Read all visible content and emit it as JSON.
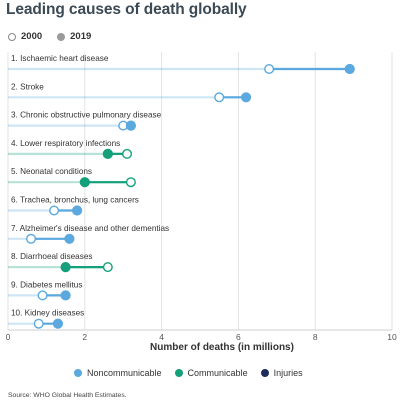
{
  "title": "Leading causes of death globally",
  "year_legend": [
    {
      "label": "2000",
      "style": "open"
    },
    {
      "label": "2019",
      "style": "filled"
    }
  ],
  "category_legend": [
    {
      "label": "Noncommunicable",
      "color": "#5ba9de"
    },
    {
      "label": "Communicable",
      "color": "#13a07a"
    },
    {
      "label": "Injuries",
      "color": "#1d2c5b"
    }
  ],
  "source": "Source: WHO Global Health Estimates.",
  "chart_data": {
    "type": "dumbbell",
    "title": "Leading causes of death globally",
    "xlabel": "Number of deaths (in millions)",
    "ylabel": "",
    "xlim": [
      0,
      10
    ],
    "xticks": [
      0,
      2,
      4,
      6,
      8,
      10
    ],
    "series": [
      {
        "name": "2000"
      },
      {
        "name": "2019"
      }
    ],
    "grid": "vertical",
    "legend_position": "top-left",
    "categories": [
      {
        "label": "1. Ischaemic heart disease",
        "v2000": 6.8,
        "v2019": 8.9,
        "group": "Noncommunicable"
      },
      {
        "label": "2. Stroke",
        "v2000": 5.5,
        "v2019": 6.2,
        "group": "Noncommunicable"
      },
      {
        "label": "3. Chronic obstructive pulmonary disease",
        "v2000": 3.0,
        "v2019": 3.2,
        "group": "Noncommunicable"
      },
      {
        "label": "4. Lower respiratory infections",
        "v2000": 3.1,
        "v2019": 2.6,
        "group": "Communicable"
      },
      {
        "label": "5. Neonatal conditions",
        "v2000": 3.2,
        "v2019": 2.0,
        "group": "Communicable"
      },
      {
        "label": "6. Trachea, bronchus, lung cancers",
        "v2000": 1.2,
        "v2019": 1.8,
        "group": "Noncommunicable"
      },
      {
        "label": "7. Alzheimer's disease and other dementias",
        "v2000": 0.6,
        "v2019": 1.6,
        "group": "Noncommunicable"
      },
      {
        "label": "8. Diarrhoeal diseases",
        "v2000": 2.6,
        "v2019": 1.5,
        "group": "Communicable"
      },
      {
        "label": "9. Diabetes mellitus",
        "v2000": 0.9,
        "v2019": 1.5,
        "group": "Noncommunicable"
      },
      {
        "label": "10. Kidney diseases",
        "v2000": 0.8,
        "v2019": 1.3,
        "group": "Noncommunicable"
      }
    ]
  }
}
